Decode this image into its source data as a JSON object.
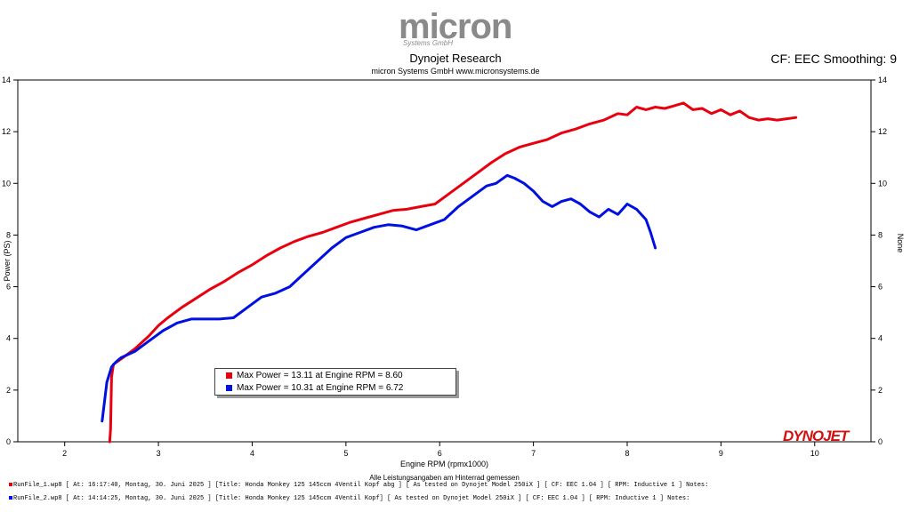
{
  "logo": {
    "text": "micron",
    "sub": "Systems GmbH"
  },
  "title": "Dynojet Research",
  "subtitle": "micron Systems GmbH  www.micronsystems.de",
  "cf_label": "CF: EEC Smoothing: 9",
  "brand": "DYNOJET",
  "legend": [
    {
      "label": "Max Power = 13.11 at Engine RPM = 8.60",
      "color": "#e8000f"
    },
    {
      "label": "Max Power = 10.31 at Engine RPM = 6.72",
      "color": "#0010e0"
    }
  ],
  "footer": [
    {
      "text": "RunFile_1.wp8  [ At:  16:17:40, Montag, 30. Juni 2025 ] [Title:  Honda Monkey 125 145ccm 4Ventil Kopf abg ]  [ As tested on Dynojet Model 250iX ] [ CF: EEC 1.04 ] [ RPM: Inductive 1 ] Notes:",
      "color": "#e8000f"
    },
    {
      "text": "RunFile_2.wp8  [ At:  14:14:25, Montag, 30. Juni 2025 ] [Title:  Honda Monkey 125 145ccm 4Ventil Kopf]  [ As tested on Dynojet Model 250iX ] [ CF: EEC 1.04 ] [ RPM: Inductive 1 ] Notes:",
      "color": "#0010e0"
    }
  ],
  "chart_data": {
    "type": "line",
    "xlabel": "Engine RPM (rpmx1000)",
    "xlabel2": "Alle Leistungsangaben am Hinterrad gemessen",
    "ylabel": "Power (PS)",
    "ylabel_right": "None",
    "xlim": [
      1.5,
      10.6
    ],
    "ylim": [
      0,
      14
    ],
    "xticks": [
      2,
      3,
      4,
      5,
      6,
      7,
      8,
      9,
      10
    ],
    "yticks": [
      0,
      2,
      4,
      6,
      8,
      10,
      12,
      14
    ],
    "grid": false,
    "legend_position": "bottom-left",
    "series": [
      {
        "color": "#e8000f",
        "x": [
          2.48,
          2.49,
          2.5,
          2.52,
          2.6,
          2.75,
          2.9,
          3.0,
          3.1,
          3.25,
          3.4,
          3.55,
          3.7,
          3.85,
          4.0,
          4.15,
          4.3,
          4.45,
          4.6,
          4.75,
          4.9,
          5.05,
          5.2,
          5.35,
          5.5,
          5.65,
          5.8,
          5.95,
          6.1,
          6.25,
          6.4,
          6.55,
          6.7,
          6.85,
          7.0,
          7.15,
          7.3,
          7.45,
          7.6,
          7.75,
          7.9,
          8.0,
          8.1,
          8.2,
          8.3,
          8.4,
          8.5,
          8.6,
          8.7,
          8.8,
          8.9,
          9.0,
          9.1,
          9.2,
          9.3,
          9.4,
          9.5,
          9.6,
          9.7,
          9.8
        ],
        "values": [
          0.0,
          0.5,
          2.5,
          3.0,
          3.2,
          3.6,
          4.1,
          4.5,
          4.8,
          5.2,
          5.55,
          5.9,
          6.2,
          6.55,
          6.85,
          7.2,
          7.5,
          7.75,
          7.95,
          8.1,
          8.3,
          8.5,
          8.65,
          8.8,
          8.95,
          9.0,
          9.1,
          9.2,
          9.6,
          10.0,
          10.4,
          10.8,
          11.15,
          11.4,
          11.55,
          11.7,
          11.95,
          12.1,
          12.3,
          12.45,
          12.7,
          12.65,
          12.95,
          12.85,
          12.95,
          12.9,
          13.0,
          13.11,
          12.85,
          12.9,
          12.7,
          12.85,
          12.65,
          12.8,
          12.55,
          12.45,
          12.5,
          12.45,
          12.5,
          12.55
        ]
      },
      {
        "color": "#0010e0",
        "x": [
          2.4,
          2.45,
          2.5,
          2.55,
          2.6,
          2.75,
          2.9,
          3.05,
          3.2,
          3.35,
          3.5,
          3.65,
          3.8,
          3.95,
          4.1,
          4.25,
          4.4,
          4.55,
          4.7,
          4.85,
          5.0,
          5.15,
          5.3,
          5.45,
          5.6,
          5.75,
          5.9,
          6.05,
          6.2,
          6.35,
          6.5,
          6.6,
          6.72,
          6.8,
          6.9,
          7.0,
          7.1,
          7.2,
          7.3,
          7.4,
          7.5,
          7.6,
          7.7,
          7.8,
          7.9,
          8.0,
          8.1,
          8.2,
          8.25,
          8.3
        ],
        "values": [
          0.8,
          2.3,
          2.9,
          3.1,
          3.25,
          3.5,
          3.9,
          4.3,
          4.6,
          4.75,
          4.75,
          4.75,
          4.8,
          5.2,
          5.6,
          5.75,
          6.0,
          6.5,
          7.0,
          7.5,
          7.9,
          8.1,
          8.3,
          8.4,
          8.35,
          8.2,
          8.4,
          8.6,
          9.1,
          9.5,
          9.9,
          10.0,
          10.31,
          10.2,
          10.0,
          9.7,
          9.3,
          9.1,
          9.3,
          9.4,
          9.2,
          8.9,
          8.7,
          9.0,
          8.8,
          9.2,
          9.0,
          8.6,
          8.1,
          7.5
        ]
      }
    ]
  }
}
